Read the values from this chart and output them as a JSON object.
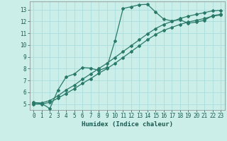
{
  "xlabel": "Humidex (Indice chaleur)",
  "bg_color": "#cceee8",
  "grid_color": "#aadddd",
  "line_color": "#2a7a6a",
  "xlim": [
    -0.5,
    23.5
  ],
  "ylim": [
    4.5,
    13.7
  ],
  "xticks": [
    0,
    1,
    2,
    3,
    4,
    5,
    6,
    7,
    8,
    9,
    10,
    11,
    12,
    13,
    14,
    15,
    16,
    17,
    18,
    19,
    20,
    21,
    22,
    23
  ],
  "yticks": [
    5,
    6,
    7,
    8,
    9,
    10,
    11,
    12,
    13
  ],
  "line1_x": [
    0,
    1,
    2,
    3,
    4,
    5,
    6,
    7,
    8,
    9,
    10,
    11,
    12,
    13,
    14,
    15,
    16,
    17,
    18,
    19,
    20,
    21,
    22,
    23
  ],
  "line1_y": [
    5.15,
    5.05,
    4.62,
    6.2,
    7.3,
    7.55,
    8.1,
    8.05,
    7.85,
    8.1,
    10.35,
    13.1,
    13.25,
    13.42,
    13.45,
    12.8,
    12.2,
    12.05,
    12.15,
    11.85,
    11.95,
    12.1,
    12.5,
    12.6
  ],
  "line2_x": [
    0,
    1,
    2,
    3,
    4,
    5,
    6,
    7,
    8,
    9,
    10,
    11,
    12,
    13,
    14,
    15,
    16,
    17,
    18,
    19,
    20,
    21,
    22,
    23
  ],
  "line2_y": [
    5.0,
    5.0,
    5.15,
    5.5,
    5.9,
    6.3,
    6.75,
    7.15,
    7.6,
    8.0,
    8.45,
    8.95,
    9.45,
    9.95,
    10.45,
    10.9,
    11.25,
    11.5,
    11.75,
    11.95,
    12.1,
    12.25,
    12.45,
    12.55
  ],
  "line3_x": [
    0,
    1,
    2,
    3,
    4,
    5,
    6,
    7,
    8,
    9,
    10,
    11,
    12,
    13,
    14,
    15,
    16,
    17,
    18,
    19,
    20,
    21,
    22,
    23
  ],
  "line3_y": [
    5.1,
    5.1,
    5.3,
    5.7,
    6.2,
    6.6,
    7.1,
    7.55,
    8.0,
    8.45,
    8.95,
    9.45,
    9.95,
    10.45,
    10.95,
    11.4,
    11.75,
    12.0,
    12.25,
    12.45,
    12.6,
    12.75,
    12.9,
    12.95
  ],
  "tick_fontsize": 5.5,
  "xlabel_fontsize": 6.5
}
